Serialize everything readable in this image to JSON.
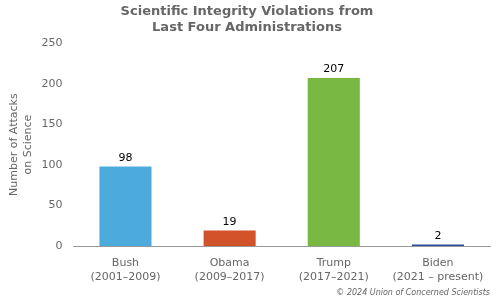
{
  "chart_data": {
    "type": "bar",
    "title": "Scientific Integrity Violations from\nLast Four Administrations",
    "categories": [
      "Bush\n(2001–2009)",
      "Obama\n(2009–2017)",
      "Trump\n(2017–2021)",
      "Biden\n(2021 – present)"
    ],
    "values": [
      98,
      19,
      207,
      2
    ],
    "colors": [
      "#4DAADC",
      "#D2522A",
      "#78B843",
      "#2B4C9B"
    ],
    "ylabel": "Number of Attacks\non Science",
    "ylim": [
      0,
      250
    ],
    "yticks": [
      0,
      50,
      100,
      150,
      200,
      250
    ],
    "grid": false,
    "data_labels": true,
    "footer": "© 2024 Union of Concerned Scientists"
  }
}
